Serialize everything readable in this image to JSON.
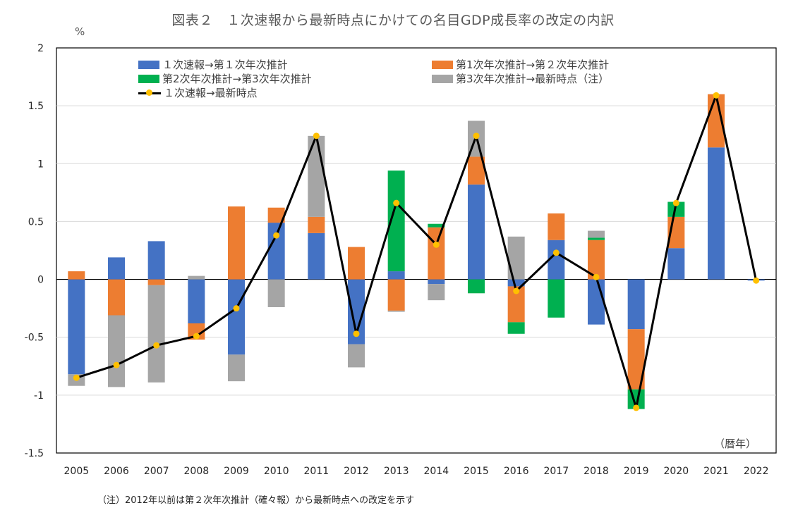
{
  "title": "図表２　１次速報から最新時点にかけての名目GDP成長率の改定の内訳",
  "unit": "%",
  "note": "（注）2012年以前は第２次年次推計（確々報）から最新時点への改定を示す",
  "colors": {
    "s1": "#4472c4",
    "s2": "#ed7d31",
    "s3": "#00b050",
    "s4": "#a5a5a5",
    "line": "#000000",
    "marker": "#ffc000"
  },
  "chart_data": {
    "type": "bar",
    "xlabel": "（暦年）",
    "ylabel": "%",
    "ylim": [
      -1.5,
      2
    ],
    "yticks": [
      -1.5,
      -1,
      -0.5,
      0,
      0.5,
      1,
      1.5,
      2
    ],
    "ytick_labels": [
      "-1.5",
      "-1",
      "-0.5",
      "0",
      "0.5",
      "1",
      "1.5",
      "2"
    ],
    "grid": true,
    "legend_position": "top",
    "categories": [
      "2005",
      "2006",
      "2007",
      "2008",
      "2009",
      "2010",
      "2011",
      "2012",
      "2013",
      "2014",
      "2015",
      "2016",
      "2017",
      "2018",
      "2019",
      "2020",
      "2021",
      "2022"
    ],
    "series": [
      {
        "name": "１次速報→第１次年次推計",
        "kind": "bar",
        "color": "#4472c4",
        "values": [
          -0.82,
          0.19,
          0.33,
          -0.38,
          -0.65,
          0.49,
          0.4,
          -0.56,
          0.07,
          -0.04,
          0.82,
          -0.06,
          0.34,
          -0.39,
          -0.43,
          0.27,
          1.14,
          -0.01
        ]
      },
      {
        "name": "第1次年次推計→第２次年次推計",
        "kind": "bar",
        "color": "#ed7d31",
        "values": [
          0.07,
          -0.31,
          -0.05,
          -0.14,
          0.63,
          0.13,
          0.14,
          0.28,
          -0.27,
          0.45,
          0.24,
          -0.31,
          0.23,
          0.34,
          -0.52,
          0.27,
          0.46,
          0
        ]
      },
      {
        "name": "第2次年次推計→第3次年次推計",
        "kind": "bar",
        "color": "#00b050",
        "values": [
          0,
          0,
          0,
          0,
          0,
          0,
          0,
          0,
          0.87,
          0.03,
          -0.12,
          -0.1,
          -0.33,
          0.02,
          -0.17,
          0.13,
          0,
          0
        ]
      },
      {
        "name": "第3次年次推計→最新時点（注）",
        "kind": "bar",
        "color": "#a5a5a5",
        "values": [
          -0.1,
          -0.62,
          -0.84,
          0.03,
          -0.23,
          -0.24,
          0.7,
          -0.2,
          -0.01,
          -0.14,
          0.31,
          0.37,
          0,
          0.06,
          0,
          0,
          0,
          0
        ]
      },
      {
        "name": "１次速報→最新時点",
        "kind": "line",
        "color": "#000000",
        "marker_color": "#ffc000",
        "values": [
          -0.85,
          -0.74,
          -0.57,
          -0.49,
          -0.25,
          0.38,
          1.24,
          -0.47,
          0.66,
          0.3,
          1.24,
          -0.1,
          0.23,
          0.02,
          -1.11,
          0.66,
          1.59,
          -0.01
        ]
      }
    ]
  }
}
